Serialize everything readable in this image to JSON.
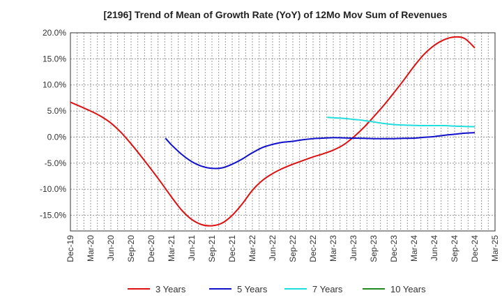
{
  "chart_data": {
    "type": "line",
    "title": "[2196]  Trend of Mean of Growth Rate (YoY) of 12Mo Mov Sum of Revenues",
    "xlabel": "",
    "ylabel": "",
    "ylim": [
      -18,
      20
    ],
    "y_ticks": [
      20,
      15,
      10,
      5,
      0,
      -5,
      -10,
      -15
    ],
    "y_tick_labels": [
      "20.0%",
      "15.0%",
      "10.0%",
      "5.0%",
      "0.0%",
      "-5.0%",
      "-10.0%",
      "-15.0%"
    ],
    "x_tick_labels": [
      "Dec-19",
      "Mar-20",
      "Jun-20",
      "Sep-20",
      "Dec-20",
      "Mar-21",
      "Jun-21",
      "Sep-21",
      "Dec-21",
      "Mar-22",
      "Jun-22",
      "Sep-22",
      "Dec-22",
      "Mar-23",
      "Jun-23",
      "Sep-23",
      "Dec-23",
      "Mar-24",
      "Jun-24",
      "Sep-24",
      "Dec-24",
      "Mar-25"
    ],
    "x_range_quarters": [
      0,
      21
    ],
    "series": [
      {
        "name": "3 Years",
        "color": "#dd1111",
        "x": [
          0,
          1,
          1.5,
          2,
          2.5,
          3,
          3.5,
          4,
          4.5,
          5,
          5.5,
          6,
          6.5,
          7,
          7.5,
          8,
          8.5,
          9,
          9.5,
          10,
          10.5,
          11,
          11.5,
          12,
          12.5,
          13,
          13.5,
          14,
          14.5,
          15,
          15.5,
          16,
          16.5,
          17,
          17.5,
          18,
          18.5,
          19,
          19.5,
          20
        ],
        "values": [
          6.7,
          5.0,
          4.0,
          2.7,
          0.9,
          -1.3,
          -3.7,
          -6.2,
          -8.8,
          -11.5,
          -14.0,
          -15.8,
          -16.8,
          -17.0,
          -16.5,
          -15.0,
          -12.8,
          -10.2,
          -8.3,
          -7.0,
          -6.0,
          -5.2,
          -4.5,
          -3.8,
          -3.2,
          -2.5,
          -1.5,
          0.0,
          1.8,
          3.9,
          6.1,
          8.5,
          11.0,
          13.6,
          15.9,
          17.6,
          18.7,
          19.2,
          18.9,
          17.1
        ]
      },
      {
        "name": "5 Years",
        "color": "#1111cc",
        "x": [
          4.7,
          5,
          5.5,
          6,
          6.5,
          7,
          7.5,
          8,
          8.5,
          9,
          9.5,
          10,
          10.5,
          11,
          11.5,
          12,
          12.5,
          13,
          13.5,
          14,
          14.5,
          15,
          15.5,
          16,
          16.5,
          17,
          17.5,
          18,
          18.5,
          19,
          19.5,
          20
        ],
        "values": [
          -0.2,
          -1.5,
          -3.3,
          -4.7,
          -5.6,
          -6.0,
          -5.9,
          -5.2,
          -4.2,
          -3.0,
          -2.0,
          -1.4,
          -1.0,
          -0.8,
          -0.5,
          -0.3,
          -0.2,
          -0.1,
          -0.15,
          -0.2,
          -0.25,
          -0.3,
          -0.3,
          -0.3,
          -0.25,
          -0.2,
          -0.05,
          0.1,
          0.35,
          0.55,
          0.75,
          0.85
        ]
      },
      {
        "name": "7 Years",
        "color": "#22dddd",
        "x": [
          12.7,
          13,
          13.5,
          14,
          14.5,
          15,
          15.5,
          16,
          16.5,
          17,
          17.5,
          18,
          18.5,
          19,
          19.5,
          20
        ],
        "values": [
          3.8,
          3.7,
          3.6,
          3.4,
          3.2,
          2.9,
          2.6,
          2.4,
          2.3,
          2.25,
          2.2,
          2.2,
          2.2,
          2.1,
          2.05,
          2.0
        ]
      },
      {
        "name": "10 Years",
        "color": "#228822",
        "x": [],
        "values": []
      }
    ],
    "legend_position": "bottom"
  }
}
